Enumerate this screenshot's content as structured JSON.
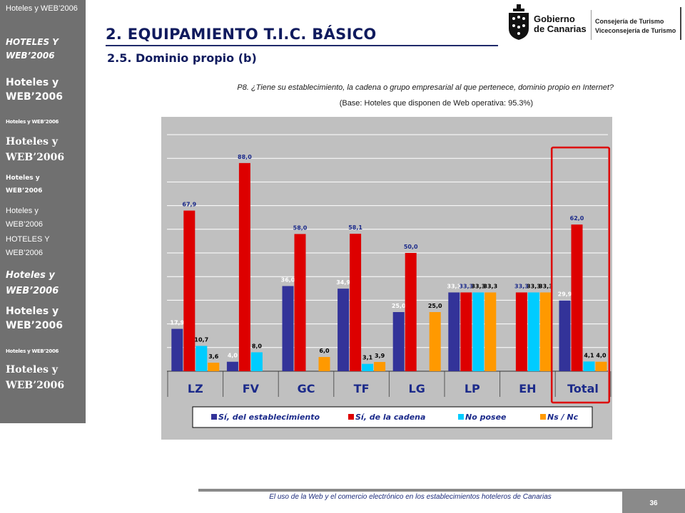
{
  "sidebar": {
    "items": [
      "Hoteles y WEB’2006",
      "HOTELES Y WEB’2006",
      "Hoteles y WEB’2006",
      "Hoteles y WEB’2006",
      "Hoteles y WEB’2006",
      "Hoteles y WEB’2006",
      "Hoteles y WEB’2006",
      "HOTELES Y WEB’2006",
      "Hoteles y WEB’2006",
      "Hoteles y WEB’2006",
      "Hoteles y WEB’2006",
      "Hoteles y WEB’2006"
    ]
  },
  "header": {
    "title": "2. EQUIPAMIENTO T.I.C. BÁSICO",
    "subtitle": "2.5. Dominio propio (b)"
  },
  "logos": {
    "gobierno": "Gobierno de Canarias",
    "gobierno_line1": "Gobierno",
    "gobierno_line2": "de Canarias",
    "consejeria_line1": "Consejería de Turismo",
    "consejeria_line2": "Viceconsejería de Turismo"
  },
  "question": "P8. ¿Tiene su establecimiento, la cadena o grupo empresarial al que pertenece, dominio propio en Internet?",
  "base": "(Base: Hoteles que disponen de Web operativa: 95.3%)",
  "chart_data": {
    "type": "bar",
    "categories": [
      "LZ",
      "FV",
      "GC",
      "TF",
      "LG",
      "LP",
      "EH",
      "Total"
    ],
    "series": [
      {
        "name": "Sí, del establecimiento",
        "color": "#333399",
        "values": [
          17.9,
          4.0,
          36.0,
          34.9,
          25.0,
          33.3,
          null,
          29.9
        ],
        "labels": [
          "17,9",
          "4,0",
          "36,0",
          "34,9",
          "25,0",
          "33,3",
          "",
          "29,9"
        ]
      },
      {
        "name": "Sí, de la cadena",
        "color": "#dd0000",
        "values": [
          67.9,
          88.0,
          58.0,
          58.1,
          50.0,
          33.3,
          33.3,
          62.0
        ],
        "labels": [
          "67,9",
          "88,0",
          "58,0",
          "58,1",
          "50,0",
          "33,3",
          "33,3",
          "62,0"
        ]
      },
      {
        "name": "No posee",
        "color": "#00ccff",
        "values": [
          10.7,
          8.0,
          null,
          3.1,
          null,
          33.3,
          33.3,
          4.1
        ],
        "labels": [
          "10,7",
          "8,0",
          "",
          "3,1",
          "",
          "33,3",
          "33,3",
          "4,1"
        ]
      },
      {
        "name": "Ns / Nc",
        "color": "#ff9900",
        "values": [
          3.6,
          null,
          6.0,
          3.9,
          25.0,
          33.3,
          33.3,
          4.0
        ],
        "labels": [
          "3,6",
          "",
          "6,0",
          "3,9",
          "25,0",
          "33,3",
          "33,3",
          "4,0"
        ]
      }
    ],
    "ylim": [
      0,
      100
    ],
    "grid": true,
    "legend": "bottom",
    "highlight_category": "Total",
    "highlight_color": "#dd0000"
  },
  "footer": {
    "text": "El uso de la Web y el comercio electrónico en los establecimientos hoteleros de Canarias",
    "page": "36"
  }
}
